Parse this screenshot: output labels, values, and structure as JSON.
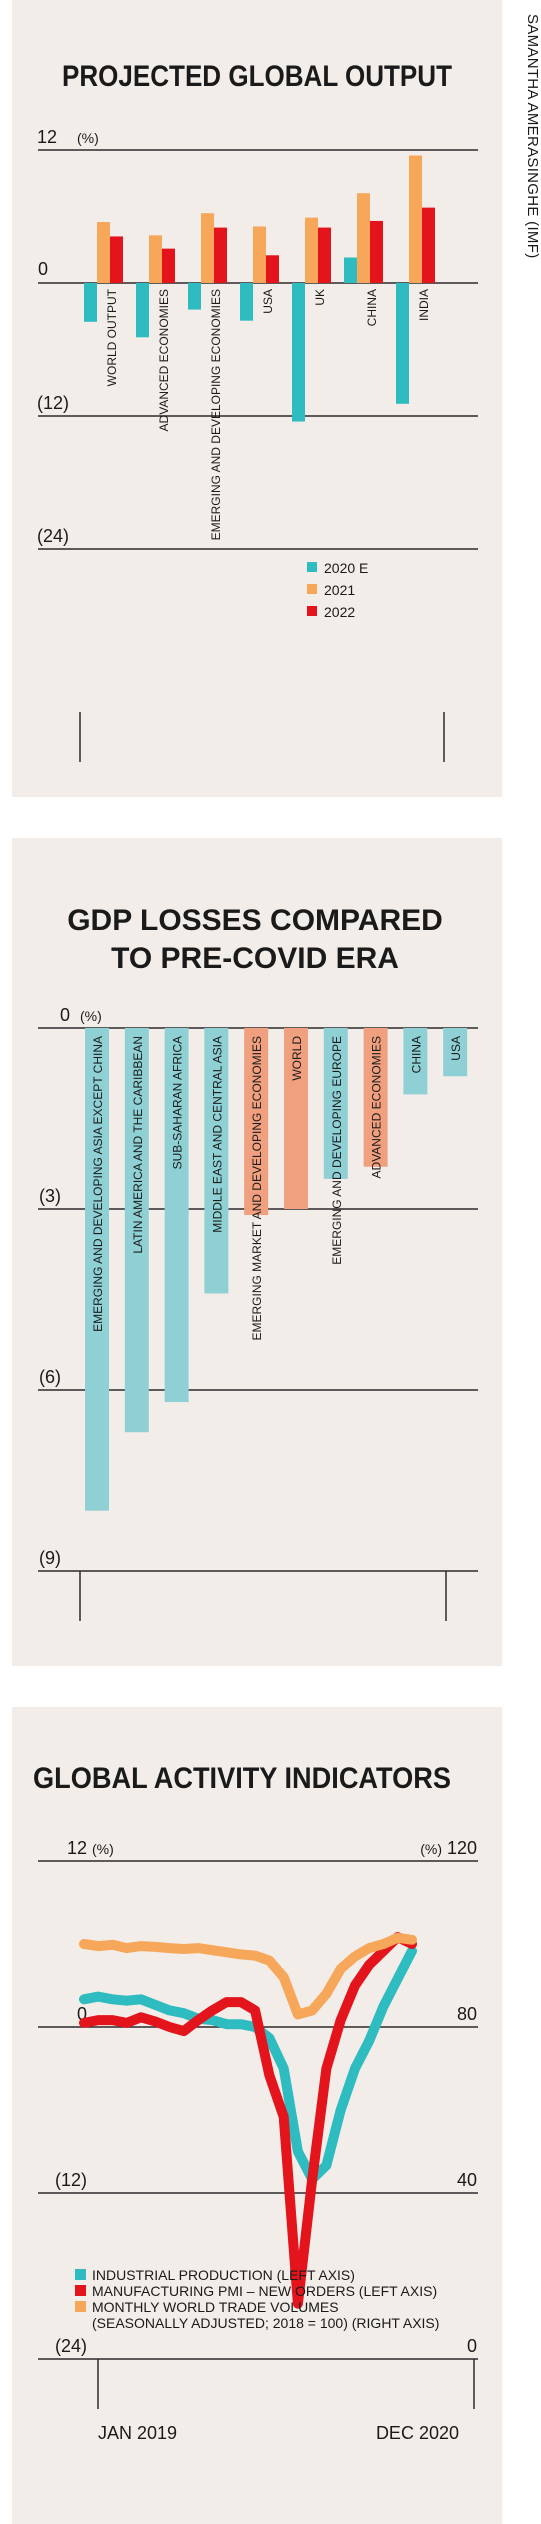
{
  "credit": "SAMANTHA AMERASINGHE (IMF)",
  "colors": {
    "teal": "#2fbcc0",
    "orange": "#f7a75a",
    "red": "#e3141b",
    "lightTeal": "#8ed0d4",
    "salmon": "#f0a07f",
    "grid": "#2a2a2a"
  },
  "chart_data": [
    {
      "type": "bar",
      "title": "PROJECTED GLOBAL OUTPUT",
      "unit": "(%)",
      "ylim": [
        -24,
        12
      ],
      "yticks": [
        {
          "value": 12,
          "label": "12"
        },
        {
          "value": 0,
          "label": "0"
        },
        {
          "value": -12,
          "label": "(12)"
        },
        {
          "value": -24,
          "label": "(24)"
        }
      ],
      "categories": [
        "WORLD OUTPUT",
        "ADVANCED ECONOMIES",
        "EMERGING AND DEVELOPING ECONOMIES",
        "USA",
        "UK",
        "CHINA",
        "INDIA"
      ],
      "series": [
        {
          "name": "2020 E",
          "color": "#2fbcc0",
          "values": [
            -3.5,
            -4.9,
            -2.4,
            -3.4,
            -12.5,
            2.3,
            -10.9
          ]
        },
        {
          "name": "2021",
          "color": "#f7a75a",
          "values": [
            5.5,
            4.3,
            6.3,
            5.1,
            5.9,
            8.1,
            11.5
          ]
        },
        {
          "name": "2022",
          "color": "#e3141b",
          "values": [
            4.2,
            3.1,
            5.0,
            2.5,
            5.0,
            5.6,
            6.8
          ]
        }
      ],
      "legend": "bottom-center"
    },
    {
      "type": "bar",
      "title": "GDP LOSSES COMPARED TO PRE-COVID ERA",
      "title_lines": [
        "GDP LOSSES COMPARED",
        "TO PRE-COVID ERA"
      ],
      "unit": "(%)",
      "ylim": [
        -9,
        0
      ],
      "yticks": [
        {
          "value": 0,
          "label": "0"
        },
        {
          "value": -3,
          "label": "(3)"
        },
        {
          "value": -6,
          "label": "(6)"
        },
        {
          "value": -9,
          "label": "(9)"
        }
      ],
      "categories": [
        "EMERGING AND DEVELOPING ASIA EXCEPT CHINA",
        "LATIN AMERICA AND THE CARIBBEAN",
        "SUB-SAHARAN AFRICA",
        "MIDDLE EAST AND CENTRAL ASIA",
        "EMERGING MARKET AND DEVELOPING ECONOMIES",
        "WORLD",
        "EMERGING AND DEVELOPING EUROPE",
        "ADVANCED ECONOMIES",
        "CHINA",
        "USA"
      ],
      "values": [
        -8.0,
        -6.7,
        -6.2,
        -4.4,
        -3.1,
        -3.0,
        -2.5,
        -2.3,
        -1.1,
        -0.8
      ],
      "highlight": [
        "EMERGING MARKET AND DEVELOPING ECONOMIES",
        "WORLD",
        "ADVANCED ECONOMIES"
      ]
    },
    {
      "type": "line",
      "title": "GLOBAL ACTIVITY INDICATORS",
      "unit_left": "(%)",
      "unit_right": "(%)",
      "ylim_left": [
        -24,
        12
      ],
      "ylim_right": [
        0,
        120
      ],
      "yticks_left": [
        {
          "value": 12,
          "label": "12"
        },
        {
          "value": 0,
          "label": "0"
        },
        {
          "value": -12,
          "label": "(12)"
        },
        {
          "value": -24,
          "label": "(24)"
        }
      ],
      "yticks_right": [
        {
          "value": 120,
          "label": "120"
        },
        {
          "value": 80,
          "label": "80"
        },
        {
          "value": 40,
          "label": "40"
        },
        {
          "value": 0,
          "label": "0"
        }
      ],
      "x_labels": [
        "JAN 2019",
        "DEC 2020"
      ],
      "x": [
        "Jan 2019",
        "Feb 2019",
        "Mar 2019",
        "Apr 2019",
        "May 2019",
        "Jun 2019",
        "Jul 2019",
        "Aug 2019",
        "Sep 2019",
        "Oct 2019",
        "Nov 2019",
        "Dec 2019",
        "Jan 2020",
        "Feb 2020",
        "Mar 2020",
        "Apr 2020",
        "May 2020",
        "Jun 2020",
        "Jul 2020",
        "Aug 2020",
        "Sep 2020",
        "Oct 2020",
        "Nov 2020",
        "Dec 2020"
      ],
      "series": [
        {
          "name": "INDUSTRIAL PRODUCTION (LEFT AXIS)",
          "axis": "left",
          "color": "#2fbcc0",
          "values": [
            2.0,
            2.2,
            2.0,
            1.9,
            2.0,
            1.6,
            1.2,
            1.0,
            0.6,
            0.5,
            0.2,
            0.2,
            0.0,
            -0.8,
            -3.0,
            -9.0,
            -11.0,
            -10.0,
            -6.0,
            -3.0,
            -1.0,
            1.5,
            3.5,
            5.5
          ]
        },
        {
          "name": "MANUFACTURING PMI – NEW ORDERS (LEFT AXIS)",
          "axis": "left",
          "color": "#e3141b",
          "values": [
            0.3,
            0.5,
            0.5,
            0.3,
            0.7,
            0.4,
            0.0,
            -0.3,
            0.5,
            1.2,
            1.8,
            1.8,
            1.2,
            -3.5,
            -6.5,
            -20.0,
            -11.0,
            -3.0,
            0.5,
            3.0,
            4.5,
            5.5,
            6.5,
            6.0
          ]
        },
        {
          "name": "MONTHLY WORLD TRADE VOLUMES",
          "name_detail": "(SEASONALLY ADJUSTED; 2018 = 100) (RIGHT AXIS)",
          "axis": "right",
          "color": "#f7a75a",
          "values": [
            100.0,
            99.5,
            99.8,
            99.0,
            99.5,
            99.3,
            99.0,
            98.8,
            99.0,
            98.5,
            98.0,
            97.5,
            97.2,
            96.0,
            92.0,
            83.0,
            84.0,
            88.0,
            94.0,
            97.0,
            99.0,
            100.0,
            101.5,
            101.0
          ]
        }
      ],
      "legend": "bottom-left"
    }
  ]
}
